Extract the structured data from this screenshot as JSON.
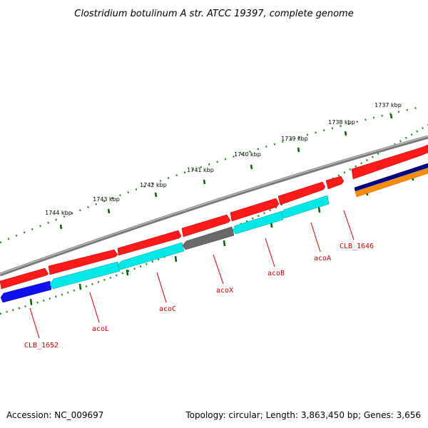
{
  "title": "Clostridium botulinum A str. ATCC 19397, complete genome",
  "footer": {
    "accession": "Accession: NC_009697",
    "stats": "Topology: circular; Length: 3,863,450 bp; Genes: 3,656"
  },
  "ticks": [
    "1744 kbp",
    "1743 kbp",
    "1742 kbp",
    "1741 kbp",
    "1740 kbp",
    "1739 kbp",
    "1738 kbp",
    "1737 kbp"
  ],
  "genes": [
    "CLB_1652",
    "acoL",
    "acoC",
    "acoX",
    "acoB",
    "acoA",
    "CLB_1646"
  ],
  "colors": {
    "backbone": "#808080",
    "forward": "#ff0000",
    "reverse_cyan": "#00e5e5",
    "reverse_blue": "#0000ee",
    "reverse_gray": "#666666",
    "navy": "#000080",
    "orange": "#ff8c00",
    "ticks": "#006600",
    "labels": "#cc0000"
  }
}
